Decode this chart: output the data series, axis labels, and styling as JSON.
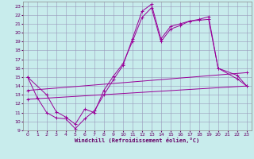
{
  "xlabel": "Windchill (Refroidissement éolien,°C)",
  "xlim": [
    -0.5,
    23.5
  ],
  "ylim": [
    9,
    23.5
  ],
  "xticks": [
    0,
    1,
    2,
    3,
    4,
    5,
    6,
    7,
    8,
    9,
    10,
    11,
    12,
    13,
    14,
    15,
    16,
    17,
    18,
    19,
    20,
    21,
    22,
    23
  ],
  "yticks": [
    9,
    10,
    11,
    12,
    13,
    14,
    15,
    16,
    17,
    18,
    19,
    20,
    21,
    22,
    23
  ],
  "bg_color": "#c8ecec",
  "grid_color": "#9999bb",
  "line_color": "#990099",
  "line1_x": [
    0,
    1,
    2,
    3,
    4,
    5,
    6,
    7,
    8,
    9,
    10,
    11,
    12,
    13,
    14,
    15,
    16,
    17,
    18,
    19,
    20,
    22,
    23
  ],
  "line1_y": [
    15.0,
    12.7,
    11.0,
    10.4,
    10.3,
    9.2,
    10.3,
    11.2,
    13.0,
    14.7,
    16.3,
    19.3,
    22.4,
    23.2,
    19.3,
    20.7,
    21.0,
    21.3,
    21.4,
    21.5,
    16.0,
    15.2,
    14.0
  ],
  "line2_x": [
    0,
    2,
    3,
    4,
    5,
    6,
    7,
    8,
    9,
    10,
    11,
    12,
    13,
    14,
    15,
    16,
    17,
    18,
    19,
    20,
    22,
    23
  ],
  "line2_y": [
    15.0,
    13.0,
    11.1,
    10.5,
    9.7,
    11.4,
    11.0,
    13.5,
    15.1,
    16.5,
    19.0,
    21.7,
    22.8,
    19.0,
    20.4,
    20.8,
    21.3,
    21.5,
    21.8,
    16.0,
    14.8,
    14.0
  ],
  "line3_x": [
    0,
    23
  ],
  "line3_y": [
    12.5,
    14.0
  ],
  "line4_x": [
    0,
    23
  ],
  "line4_y": [
    13.5,
    15.5
  ]
}
